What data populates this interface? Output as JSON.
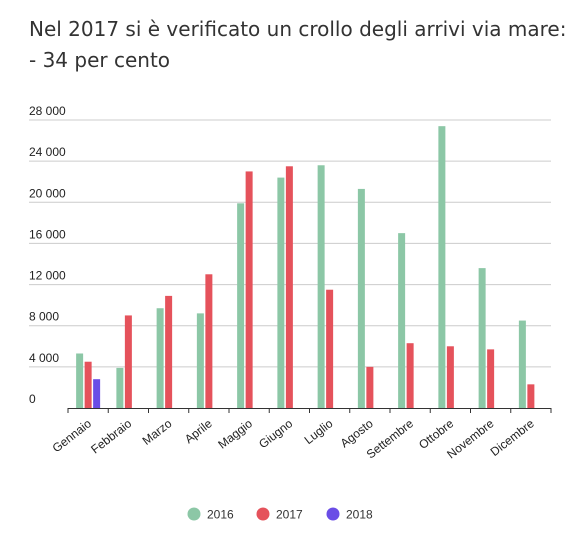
{
  "chart_data": {
    "type": "bar",
    "title": "Nel 2017 si è verificato un crollo degli arrivi via mare: - 34 per cento",
    "xlabel": "",
    "ylabel": "",
    "ylim": [
      0,
      28000
    ],
    "yticks": [
      0,
      4000,
      8000,
      12000,
      16000,
      20000,
      24000,
      28000
    ],
    "ytick_labels": [
      "0",
      "4 000",
      "8 000",
      "12 000",
      "16 000",
      "20 000",
      "24 000",
      "28 000"
    ],
    "grid": true,
    "legend_position": "bottom",
    "categories": [
      "Gennaio",
      "Febbraio",
      "Marzo",
      "Aprile",
      "Maggio",
      "Giugno",
      "Luglio",
      "Agosto",
      "Settembre",
      "Ottobre",
      "Novembre",
      "Dicembre"
    ],
    "series": [
      {
        "name": "2016",
        "color": "#8cc7a6",
        "values": [
          5300,
          3900,
          9700,
          9200,
          19900,
          22400,
          23600,
          21300,
          17000,
          27400,
          13600,
          8500
        ]
      },
      {
        "name": "2017",
        "color": "#e5525b",
        "values": [
          4500,
          9000,
          10900,
          13000,
          23000,
          23500,
          11500,
          4000,
          6300,
          6000,
          5700,
          2300
        ]
      },
      {
        "name": "2018",
        "color": "#6a4de6",
        "values": [
          2800,
          null,
          null,
          null,
          null,
          null,
          null,
          null,
          null,
          null,
          null,
          null
        ]
      }
    ]
  }
}
